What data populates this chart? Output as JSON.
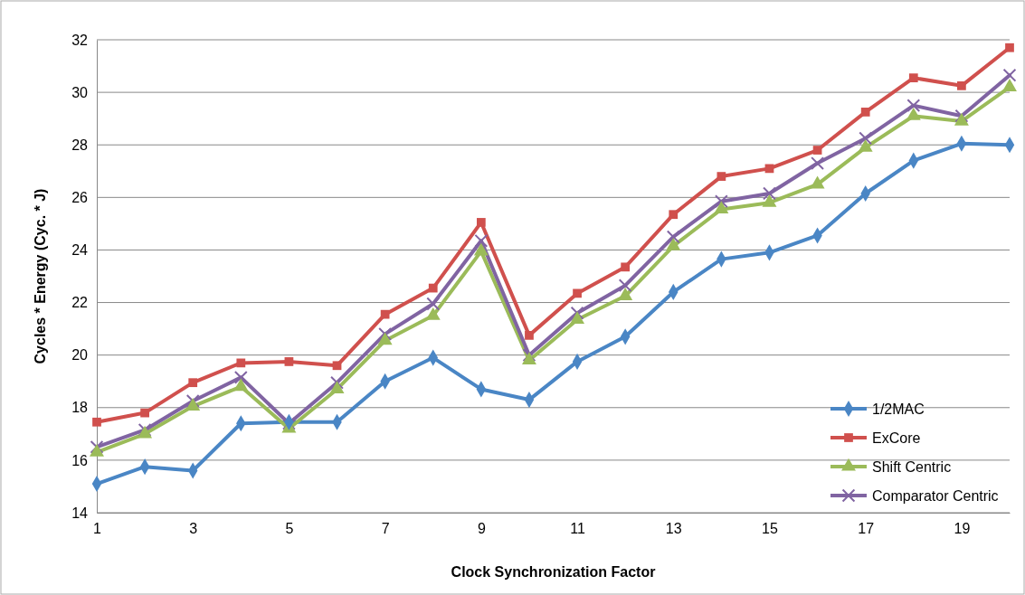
{
  "chart_data": {
    "type": "line",
    "xlabel": "Clock Synchronization Factor",
    "ylabel": "Cycles * Energy (Cyc. * J)",
    "x": [
      1,
      2,
      3,
      4,
      5,
      6,
      7,
      8,
      9,
      10,
      11,
      12,
      13,
      14,
      15,
      16,
      17,
      18,
      19,
      20
    ],
    "xlim": [
      1,
      20
    ],
    "xticks": [
      1,
      3,
      5,
      7,
      9,
      11,
      13,
      15,
      17,
      19
    ],
    "ylim": [
      14,
      32
    ],
    "yticks": [
      14,
      16,
      18,
      20,
      22,
      24,
      26,
      28,
      30,
      32
    ],
    "grid": "y",
    "legend": "bottom right",
    "line_style": "solid",
    "series": [
      {
        "name": "1/2MAC",
        "color": "#4a86c5",
        "marker": "diamond",
        "values": [
          15.1,
          15.75,
          15.6,
          17.4,
          17.45,
          17.45,
          19.0,
          19.9,
          18.7,
          18.3,
          19.75,
          20.7,
          22.4,
          23.65,
          23.9,
          24.55,
          26.15,
          27.4,
          28.05,
          28.0
        ]
      },
      {
        "name": "ExCore",
        "color": "#d0504d",
        "marker": "square",
        "values": [
          17.45,
          17.8,
          18.95,
          19.7,
          19.75,
          19.6,
          21.55,
          22.55,
          25.05,
          20.75,
          22.35,
          23.35,
          25.35,
          26.8,
          27.1,
          27.8,
          29.25,
          30.55,
          30.25,
          31.7
        ]
      },
      {
        "name": "Shift Centric",
        "color": "#9bbb59",
        "marker": "triangle",
        "values": [
          16.3,
          17.0,
          18.05,
          18.8,
          17.2,
          18.7,
          20.55,
          21.5,
          23.95,
          19.8,
          21.35,
          22.25,
          24.15,
          25.55,
          25.8,
          26.5,
          27.9,
          29.1,
          28.9,
          30.2
        ]
      },
      {
        "name": "Comparator Centric",
        "color": "#8064a2",
        "marker": "cross",
        "values": [
          16.5,
          17.15,
          18.25,
          19.15,
          17.4,
          18.95,
          20.8,
          21.95,
          24.35,
          20.0,
          21.6,
          22.65,
          24.5,
          25.85,
          26.15,
          27.3,
          28.25,
          29.5,
          29.1,
          30.65
        ]
      }
    ]
  }
}
